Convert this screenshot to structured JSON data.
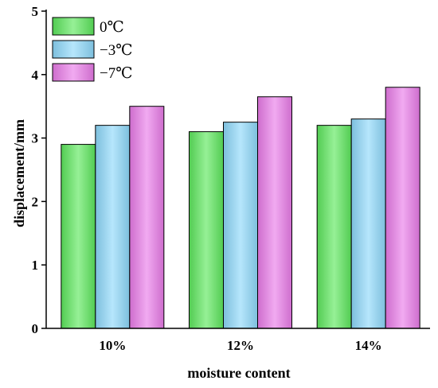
{
  "chart_data": {
    "type": "bar",
    "categories": [
      "10%",
      "12%",
      "14%"
    ],
    "series": [
      {
        "name": "0℃",
        "values": [
          2.9,
          3.1,
          3.2
        ],
        "color": "#5de85d"
      },
      {
        "name": "−3℃",
        "values": [
          3.2,
          3.25,
          3.3
        ],
        "color": "#8ed9fb"
      },
      {
        "name": "−7℃",
        "values": [
          3.5,
          3.65,
          3.8
        ],
        "color": "#ea7ce9"
      }
    ],
    "xlabel": "moisture content",
    "ylabel": "displacement/mm",
    "ylim": [
      0,
      5
    ],
    "yticks": [
      0,
      1,
      2,
      3,
      4,
      5
    ],
    "grid": false,
    "legend_position": "top-left"
  }
}
